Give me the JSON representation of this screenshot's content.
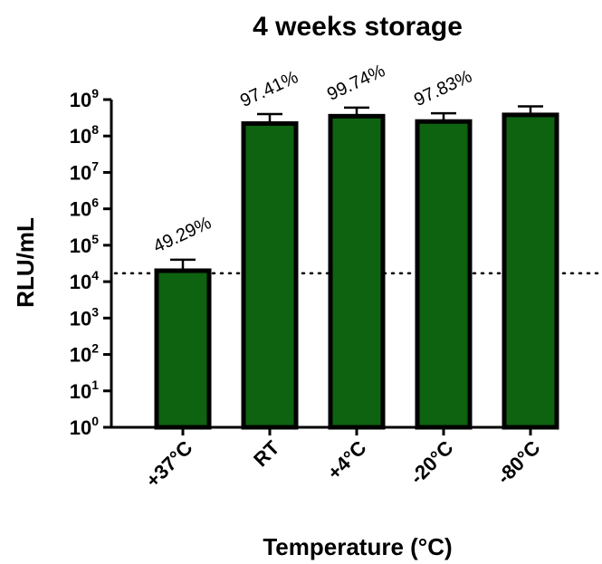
{
  "chart_data": {
    "type": "bar",
    "title": "4 weeks storage",
    "xlabel": "Temperature (°C)",
    "ylabel": "RLU/mL",
    "y_scale": "log",
    "ylim": [
      1,
      1000000000
    ],
    "y_ticks": [
      {
        "base": "10",
        "exp": "0"
      },
      {
        "base": "10",
        "exp": "1"
      },
      {
        "base": "10",
        "exp": "2"
      },
      {
        "base": "10",
        "exp": "3"
      },
      {
        "base": "10",
        "exp": "4"
      },
      {
        "base": "10",
        "exp": "5"
      },
      {
        "base": "10",
        "exp": "6"
      },
      {
        "base": "10",
        "exp": "7"
      },
      {
        "base": "10",
        "exp": "8"
      },
      {
        "base": "10",
        "exp": "9"
      }
    ],
    "categories": [
      "+37°C",
      "RT",
      "+4°C",
      "-20°C",
      "-80°C"
    ],
    "values": [
      20000,
      220000000,
      350000000,
      250000000,
      380000000
    ],
    "error_upper": [
      40000,
      400000000,
      600000000,
      420000000,
      650000000
    ],
    "data_labels": [
      "49.29%",
      "97.41%",
      "99.74%",
      "97.83%",
      ""
    ],
    "reference_line": {
      "value": 17000,
      "style": "dotted"
    },
    "bar_color": "#0d6310",
    "bar_edge_color": "#000000",
    "grid": false,
    "legend": "none"
  }
}
